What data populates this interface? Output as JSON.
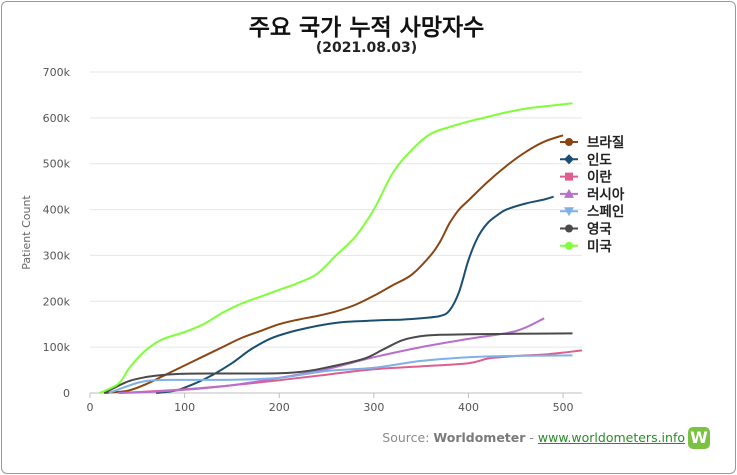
{
  "title": "주요 국가 누적 사망자수",
  "subtitle": "(2021.08.03)",
  "source": {
    "prefix": "Source: ",
    "name": "Worldometer",
    "separator": " - ",
    "link": "www.worldometers.info",
    "logo_letter": "W"
  },
  "chart_data": {
    "type": "line",
    "ylabel": "Patient Count",
    "xlabel": "",
    "xlim": [
      0,
      520
    ],
    "ylim": [
      0,
      700000
    ],
    "x_ticks": [
      0,
      100,
      200,
      300,
      400,
      500
    ],
    "y_ticks": [
      0,
      100000,
      200000,
      300000,
      400000,
      500000,
      600000,
      700000
    ],
    "y_tick_labels": [
      "0",
      "100k",
      "200k",
      "300k",
      "400k",
      "500k",
      "600k",
      "700k"
    ],
    "grid": true,
    "legend_position": "right",
    "series": [
      {
        "name": "브라질",
        "color": "#8B4513",
        "marker": "circle",
        "x": [
          15,
          40,
          60,
          80,
          100,
          120,
          140,
          160,
          180,
          200,
          220,
          240,
          260,
          280,
          300,
          320,
          340,
          360,
          370,
          380,
          390,
          400,
          420,
          440,
          460,
          480,
          500
        ],
        "y": [
          0,
          5000,
          20000,
          40000,
          60000,
          80000,
          100000,
          120000,
          135000,
          150000,
          160000,
          168000,
          178000,
          192000,
          212000,
          235000,
          258000,
          300000,
          330000,
          370000,
          400000,
          420000,
          460000,
          495000,
          525000,
          548000,
          562000
        ]
      },
      {
        "name": "인도",
        "color": "#1B4F72",
        "marker": "diamond",
        "x": [
          70,
          90,
          110,
          130,
          150,
          170,
          190,
          210,
          230,
          250,
          270,
          290,
          310,
          330,
          350,
          370,
          380,
          390,
          400,
          410,
          420,
          430,
          440,
          460,
          480,
          490
        ],
        "y": [
          0,
          5000,
          20000,
          40000,
          65000,
          95000,
          118000,
          132000,
          142000,
          150000,
          155000,
          157000,
          159000,
          160000,
          163000,
          168000,
          180000,
          220000,
          290000,
          340000,
          370000,
          387000,
          400000,
          413000,
          422000,
          428000
        ]
      },
      {
        "name": "이란",
        "color": "#E05E8E",
        "marker": "square",
        "x": [
          30,
          60,
          100,
          150,
          200,
          250,
          300,
          350,
          400,
          420,
          440,
          460,
          480,
          500,
          520
        ],
        "y": [
          0,
          3000,
          8000,
          17000,
          28000,
          40000,
          52000,
          58000,
          65000,
          75000,
          79000,
          82000,
          84000,
          88000,
          93000
        ]
      },
      {
        "name": "러시아",
        "color": "#B76FCC",
        "marker": "triangle",
        "x": [
          30,
          60,
          100,
          150,
          200,
          250,
          300,
          350,
          400,
          450,
          480
        ],
        "y": [
          0,
          2000,
          7000,
          17000,
          33000,
          52000,
          78000,
          100000,
          118000,
          135000,
          163000
        ]
      },
      {
        "name": "스페인",
        "color": "#7FB0E6",
        "marker": "triangle-down",
        "x": [
          20,
          50,
          70,
          100,
          150,
          200,
          250,
          300,
          350,
          400,
          450,
          510
        ],
        "y": [
          0,
          22000,
          28000,
          28500,
          29000,
          33000,
          48000,
          55000,
          70000,
          78000,
          81000,
          82000
        ]
      },
      {
        "name": "영국",
        "color": "#4A4A4A",
        "marker": "circle",
        "x": [
          15,
          40,
          60,
          80,
          100,
          150,
          200,
          230,
          260,
          290,
          310,
          330,
          350,
          370,
          400,
          450,
          510
        ],
        "y": [
          0,
          25000,
          35000,
          40000,
          42000,
          42500,
          43000,
          48000,
          60000,
          75000,
          95000,
          115000,
          124000,
          127000,
          128000,
          129000,
          130000
        ]
      },
      {
        "name": "미국",
        "color": "#7FFF3A",
        "marker": "circle",
        "x": [
          10,
          30,
          40,
          50,
          60,
          70,
          80,
          100,
          120,
          140,
          160,
          180,
          200,
          220,
          240,
          260,
          280,
          300,
          320,
          340,
          360,
          380,
          400,
          420,
          440,
          460,
          480,
          510
        ],
        "y": [
          0,
          20000,
          50000,
          75000,
          95000,
          110000,
          120000,
          133000,
          150000,
          175000,
          195000,
          210000,
          225000,
          240000,
          260000,
          300000,
          340000,
          400000,
          480000,
          530000,
          565000,
          580000,
          592000,
          602000,
          612000,
          620000,
          625000,
          632000
        ]
      }
    ]
  }
}
